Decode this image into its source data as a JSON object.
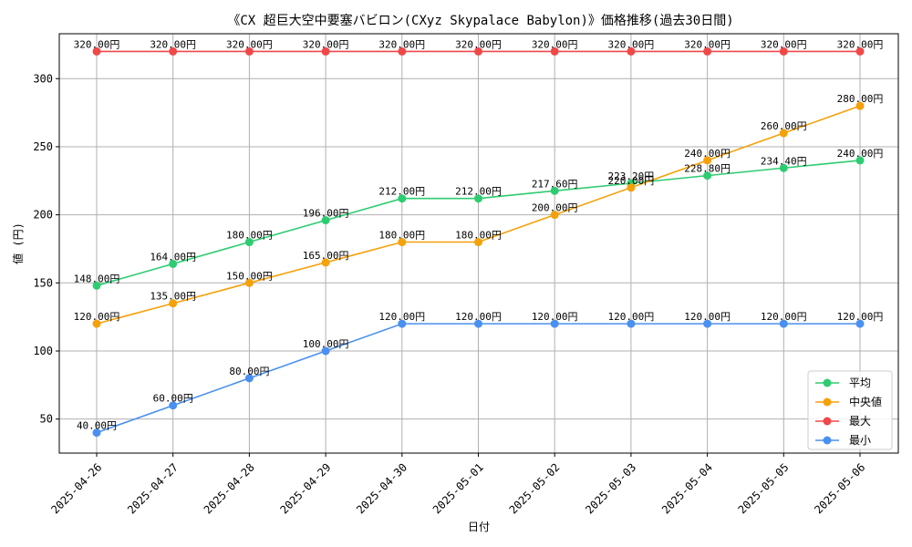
{
  "chart_data": {
    "type": "line",
    "title": "《CX 超巨大空中要塞バビロン(CXyz Skypalace Babylon)》価格推移(過去30日間)",
    "xlabel": "日付",
    "ylabel": "値 (円)",
    "ylim": [
      25,
      333
    ],
    "yticks": [
      50,
      100,
      150,
      200,
      250,
      300
    ],
    "grid": true,
    "legend_position": "lower-right",
    "label_suffix": "円",
    "categories": [
      "2025-04-26",
      "2025-04-27",
      "2025-04-28",
      "2025-04-29",
      "2025-04-30",
      "2025-05-01",
      "2025-05-02",
      "2025-05-03",
      "2025-05-04",
      "2025-05-05",
      "2025-05-06"
    ],
    "series": [
      {
        "name": "平均",
        "color": "#2ecc71",
        "values": [
          148,
          164,
          180,
          196,
          212,
          212,
          217.6,
          223.2,
          228.8,
          234.4,
          240
        ],
        "labels": [
          "148.00円",
          "164.00円",
          "180.00円",
          "196.00円",
          "212.00円",
          "212.00円",
          "217.60円",
          "223.20円",
          "228.80円",
          "234.40円",
          "240.00円"
        ]
      },
      {
        "name": "中央値",
        "color": "#f5a10a",
        "values": [
          120,
          135,
          150,
          165,
          180,
          180,
          200,
          220,
          240,
          260,
          280
        ],
        "labels": [
          "120.00円",
          "135.00円",
          "150.00円",
          "165.00円",
          "180.00円",
          "180.00円",
          "200.00円",
          "220.00円",
          "240.00円",
          "260.00円",
          "280.00円"
        ]
      },
      {
        "name": "最大",
        "color": "#f04848",
        "values": [
          320,
          320,
          320,
          320,
          320,
          320,
          320,
          320,
          320,
          320,
          320
        ],
        "labels": [
          "320.00円",
          "320.00円",
          "320.00円",
          "320.00円",
          "320.00円",
          "320.00円",
          "320.00円",
          "320.00円",
          "320.00円",
          "320.00円",
          "320.00円"
        ]
      },
      {
        "name": "最小",
        "color": "#4a90f0",
        "values": [
          40,
          60,
          80,
          100,
          120,
          120,
          120,
          120,
          120,
          120,
          120
        ],
        "labels": [
          "40.00円",
          "60.00円",
          "80.00円",
          "100.00円",
          "120.00円",
          "120.00円",
          "120.00円",
          "120.00円",
          "120.00円",
          "120.00円",
          "120.00円"
        ]
      }
    ]
  }
}
